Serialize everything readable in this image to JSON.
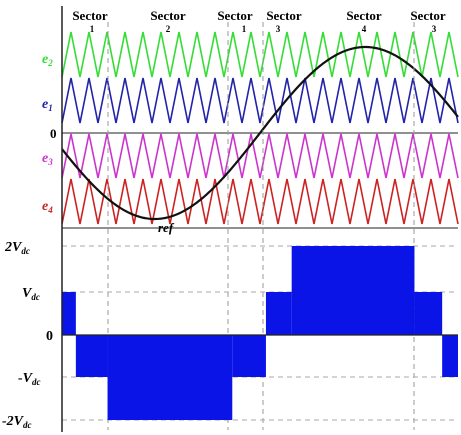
{
  "sectors": [
    {
      "label": "Sector",
      "number": "1"
    },
    {
      "label": "Sector",
      "number": "2"
    },
    {
      "label": "Sector",
      "number": "1"
    },
    {
      "label": "Sector",
      "number": "3"
    },
    {
      "label": "Sector",
      "number": "4"
    },
    {
      "label": "Sector",
      "number": "3"
    }
  ],
  "carrier_labels": [
    {
      "sym": "e",
      "sub": "2",
      "color": "#33dd33"
    },
    {
      "sym": "e",
      "sub": "1",
      "color": "#2222aa"
    },
    {
      "sym": "e",
      "sub": "3",
      "color": "#cc33cc"
    },
    {
      "sym": "e",
      "sub": "4",
      "color": "#cc2222"
    }
  ],
  "ref_label": "ref",
  "zero_label_top": "0",
  "output_levels": [
    {
      "coef": "2",
      "sym": "V",
      "sub": "dc"
    },
    {
      "coef": "",
      "sym": "V",
      "sub": "dc"
    },
    {
      "coef": "",
      "sym": "0",
      "sub": ""
    },
    {
      "coef": "-",
      "sym": "V",
      "sub": "dc"
    },
    {
      "coef": "-2",
      "sym": "V",
      "sub": "dc"
    }
  ],
  "colors": {
    "reference": "#111111",
    "output_fill": "#0a14e6",
    "axis": "#222222",
    "grid": "#999999"
  },
  "carrier_cycles": 22,
  "output_steps": [
    {
      "start": 0.0,
      "end": 0.035,
      "level": 1
    },
    {
      "start": 0.035,
      "end": 0.115,
      "level": -1
    },
    {
      "start": 0.115,
      "end": 0.43,
      "level": -2
    },
    {
      "start": 0.43,
      "end": 0.515,
      "level": -1
    },
    {
      "start": 0.515,
      "end": 0.58,
      "level": 1
    },
    {
      "start": 0.58,
      "end": 0.89,
      "level": 2
    },
    {
      "start": 0.89,
      "end": 0.96,
      "level": 1
    },
    {
      "start": 0.96,
      "end": 1.0,
      "level": -1
    }
  ]
}
